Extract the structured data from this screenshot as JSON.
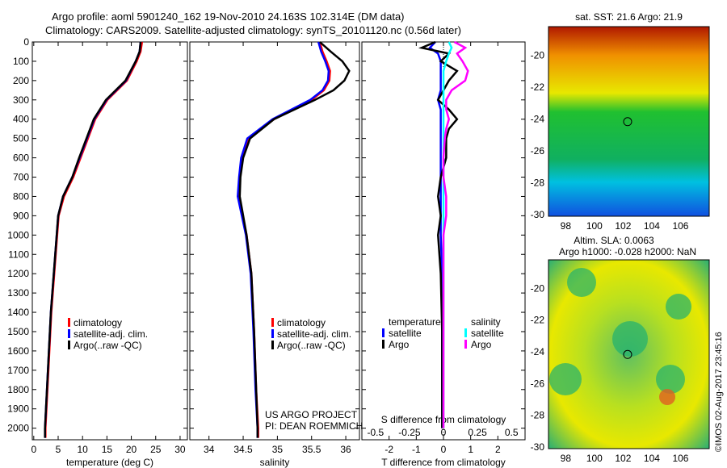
{
  "title_line1": "Argo profile: aoml 5901240_162 19-Nov-2010 24.163S 102.314E (DM data)",
  "title_line2": "Climatology: CARS2009. Satellite-adjusted climatology: synTS_20101120.nc (0.56d later)",
  "credit": "US ARGO PROJECT",
  "pi": "PI: DEAN ROEMMICH",
  "stamp": "©IMOS 02-Aug-2017 23:45:16",
  "colors": {
    "climatology": "#ff0000",
    "satellite": "#0000ff",
    "argo": "#000000",
    "sal_satellite": "#00ffff",
    "sal_argo": "#ff00ff"
  },
  "chart_data": [
    {
      "type": "line",
      "id": "temp",
      "xlabel": "temperature (deg C)",
      "xlim": [
        -0.3,
        31.5
      ],
      "ylim": [
        2060,
        0
      ],
      "xticks": [
        0,
        5,
        10,
        15,
        20,
        25,
        30
      ],
      "yticks": [
        0,
        100,
        200,
        300,
        400,
        500,
        600,
        700,
        800,
        900,
        1000,
        1100,
        1200,
        1300,
        1400,
        1500,
        1600,
        1700,
        1800,
        1900,
        2000
      ],
      "depth": [
        0,
        50,
        100,
        200,
        300,
        400,
        500,
        600,
        700,
        800,
        900,
        1000,
        1100,
        1200,
        1300,
        1400,
        1500,
        1600,
        1700,
        1800,
        1900,
        2000,
        2050
      ],
      "series": [
        {
          "name": "climatology",
          "color": "#ff0000",
          "values": [
            22.2,
            21.9,
            21.1,
            19.1,
            15.1,
            12.6,
            11.1,
            9.6,
            8.1,
            6.2,
            5.1,
            4.8,
            4.5,
            4.2,
            3.9,
            3.6,
            3.4,
            3.2,
            3.0,
            2.8,
            2.6,
            2.4,
            2.4
          ]
        },
        {
          "name": "satellite-adj. clim.",
          "color": "#0000ff",
          "values": [
            21.9,
            21.7,
            20.9,
            18.9,
            14.9,
            12.4,
            10.9,
            9.4,
            7.9,
            6.0,
            5.0,
            4.7,
            4.4,
            4.1,
            3.8,
            3.5,
            3.3,
            3.1,
            2.9,
            2.7,
            2.5,
            2.3,
            2.3
          ]
        },
        {
          "name": "Argo(..raw -QC)",
          "color": "#000000",
          "values": [
            21.9,
            21.7,
            20.9,
            18.8,
            14.8,
            12.3,
            10.8,
            9.3,
            7.9,
            6.0,
            5.0,
            4.7,
            4.4,
            4.1,
            3.8,
            3.5,
            3.3,
            3.1,
            2.9,
            2.7,
            2.5,
            2.3,
            2.3
          ]
        }
      ],
      "legend": [
        "climatology",
        "satellite-adj. clim.",
        "Argo(..raw -QC)"
      ]
    },
    {
      "type": "line",
      "id": "sal",
      "xlabel": "salinity",
      "xlim": [
        33.72,
        36.2
      ],
      "ylim": [
        2060,
        0
      ],
      "xticks": [
        34,
        34.5,
        35,
        35.5,
        36
      ],
      "depth": [
        0,
        50,
        100,
        150,
        200,
        250,
        300,
        400,
        500,
        600,
        700,
        800,
        900,
        1000,
        1200,
        1500,
        1800,
        2000,
        2050
      ],
      "series": [
        {
          "name": "climatology",
          "color": "#ff0000",
          "values": [
            35.62,
            35.66,
            35.72,
            35.77,
            35.76,
            35.68,
            35.5,
            34.95,
            34.58,
            34.48,
            34.45,
            34.43,
            34.49,
            34.55,
            34.62,
            34.66,
            34.69,
            34.72,
            34.72
          ]
        },
        {
          "name": "satellite-adj. clim.",
          "color": "#0000ff",
          "values": [
            35.6,
            35.64,
            35.7,
            35.75,
            35.74,
            35.66,
            35.48,
            34.93,
            34.56,
            34.47,
            34.44,
            34.42,
            34.48,
            34.54,
            34.61,
            34.65,
            34.68,
            34.71,
            34.71
          ]
        },
        {
          "name": "Argo(..raw -QC)",
          "color": "#000000",
          "values": [
            35.62,
            35.78,
            35.95,
            36.05,
            35.98,
            35.82,
            35.55,
            34.95,
            34.6,
            34.5,
            34.46,
            34.45,
            34.5,
            34.55,
            34.62,
            34.66,
            34.69,
            34.71,
            34.71
          ]
        }
      ],
      "legend": [
        "climatology",
        "satellite-adj. clim.",
        "Argo(..raw -QC)"
      ]
    },
    {
      "type": "line",
      "id": "diff",
      "xlabel": "T difference from climatology",
      "x2label": "S difference from climatology",
      "xlim": [
        -3,
        3
      ],
      "ylim": [
        2060,
        0
      ],
      "xticks": [
        -2,
        -1,
        0,
        1,
        2
      ],
      "x2ticks": [
        "-0.5",
        "-0.25",
        "0",
        "0.25",
        "0.5"
      ],
      "depth": [
        0,
        30,
        60,
        100,
        150,
        200,
        250,
        300,
        350,
        400,
        450,
        500,
        600,
        700,
        800,
        900,
        1000,
        1200,
        1500,
        2000
      ],
      "series": [
        {
          "name": "T satellite",
          "color": "#0000ff",
          "values": [
            -0.3,
            -0.5,
            -0.2,
            -0.1,
            -0.1,
            -0.1,
            -0.1,
            -0.2,
            -0.1,
            -0.1,
            -0.1,
            -0.1,
            -0.1,
            -0.1,
            -0.1,
            -0.1,
            -0.1,
            -0.05,
            -0.05,
            -0.05
          ]
        },
        {
          "name": "T Argo",
          "color": "#000000",
          "values": [
            -0.3,
            -0.8,
            0.2,
            -0.1,
            0.5,
            0.2,
            0.0,
            -0.2,
            0.2,
            0.5,
            0.2,
            0.1,
            0.1,
            -0.1,
            -0.2,
            -0.1,
            -0.2,
            -0.1,
            -0.05,
            -0.05
          ]
        },
        {
          "name": "S satellite",
          "color": "#00ffff",
          "values": [
            0.2,
            0.3,
            0.2,
            0.1,
            0.0,
            0.0,
            0.0,
            0.0,
            0.0,
            0.0,
            0.0,
            0.0,
            0.0,
            0.0,
            0.0,
            0.0,
            0.0,
            0.0,
            0.0,
            0.0
          ]
        },
        {
          "name": "S Argo",
          "color": "#ff00ff",
          "values": [
            0.4,
            0.8,
            0.5,
            0.7,
            0.9,
            0.8,
            0.3,
            0.1,
            0.1,
            0.2,
            0.1,
            0.05,
            0.0,
            0.0,
            0.1,
            0.1,
            0.0,
            0.0,
            0.0,
            0.0
          ]
        }
      ],
      "legend": {
        "temperature": "temperature",
        "salinity": "salinity",
        "items": [
          "satellite",
          "Argo",
          "satellite",
          "Argo"
        ]
      }
    },
    {
      "type": "heatmap",
      "id": "sst",
      "title": "sat. SST: 21.6 Argo: 21.9",
      "xticks": [
        "98",
        "100",
        "102",
        "104",
        "106"
      ],
      "yticks": [
        "-20",
        "-22",
        "-24",
        "-26",
        "-28",
        "-30"
      ],
      "marker": [
        102.314,
        -24.163
      ]
    },
    {
      "type": "heatmap",
      "id": "sla",
      "title1": "Altim. SLA: 0.0063",
      "title2": "Argo h1000: -0.028 h2000: NaN",
      "xticks": [
        "98",
        "100",
        "102",
        "104",
        "106"
      ],
      "yticks": [
        "-20",
        "-22",
        "-24",
        "-26",
        "-28",
        "-30"
      ],
      "marker": [
        102.314,
        -24.163
      ]
    }
  ]
}
